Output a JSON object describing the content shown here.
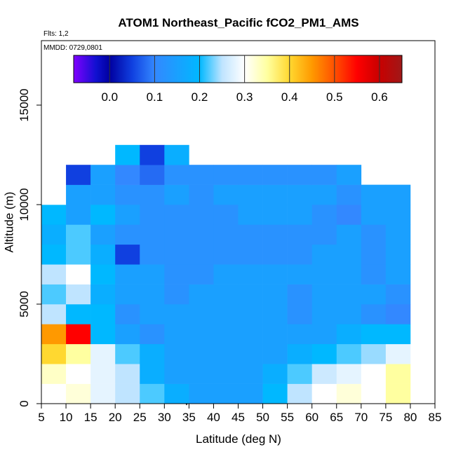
{
  "chart_data": {
    "type": "heatmap",
    "title": "ATOM1 Northeast_Pacific fCO2_PM1_AMS",
    "annotations": [
      "Flts: 1,2",
      "MMDD: 0729,0801"
    ],
    "xlabel": "Latitude (deg N)",
    "ylabel": "Altitude (m)",
    "xlim": [
      5,
      85
    ],
    "ylim": [
      0,
      18240
    ],
    "xticks": [
      5,
      10,
      15,
      20,
      25,
      30,
      35,
      40,
      45,
      50,
      55,
      60,
      65,
      70,
      75,
      80,
      85
    ],
    "yticks": [
      0,
      5000,
      10000,
      15000
    ],
    "x_edges": [
      5,
      10,
      15,
      20,
      25,
      30,
      35,
      40,
      45,
      50,
      55,
      60,
      65,
      70,
      75,
      80
    ],
    "y_edges": [
      0,
      1000,
      2000,
      3000,
      4000,
      5000,
      6000,
      7000,
      8000,
      9000,
      10000,
      11000,
      12000,
      13000
    ],
    "values": [
      [
        0.3,
        0.32,
        0.28,
        0.25,
        0.22,
        0.18,
        0.15,
        0.15,
        0.15,
        0.2,
        0.25,
        0.3,
        0.32,
        0.3,
        0.35
      ],
      [
        0.33,
        0.3,
        0.28,
        0.25,
        0.18,
        0.15,
        0.15,
        0.15,
        0.15,
        0.18,
        0.22,
        0.26,
        0.28,
        0.3,
        0.35
      ],
      [
        0.4,
        0.35,
        0.28,
        0.22,
        0.18,
        0.15,
        0.15,
        0.15,
        0.15,
        0.15,
        0.18,
        0.2,
        0.22,
        0.24,
        0.28
      ],
      [
        0.45,
        0.55,
        0.2,
        0.15,
        0.12,
        0.15,
        0.15,
        0.15,
        0.15,
        0.15,
        0.15,
        0.15,
        0.18,
        0.2,
        0.2
      ],
      [
        0.25,
        0.2,
        0.2,
        0.12,
        0.15,
        0.15,
        0.15,
        0.15,
        0.15,
        0.15,
        0.12,
        0.15,
        0.15,
        0.12,
        0.1
      ],
      [
        0.22,
        0.25,
        0.18,
        0.15,
        0.15,
        0.12,
        0.15,
        0.15,
        0.15,
        0.15,
        0.12,
        0.15,
        0.15,
        0.15,
        0.12
      ],
      [
        0.25,
        0.3,
        0.2,
        0.15,
        0.15,
        0.12,
        0.12,
        0.15,
        0.15,
        0.15,
        0.15,
        0.15,
        0.15,
        0.12,
        0.15
      ],
      [
        0.2,
        0.22,
        0.18,
        0.05,
        0.12,
        0.12,
        0.12,
        0.12,
        0.12,
        0.12,
        0.12,
        0.15,
        0.15,
        0.12,
        0.15
      ],
      [
        0.18,
        0.22,
        0.15,
        0.12,
        0.12,
        0.12,
        0.12,
        0.12,
        0.12,
        0.12,
        0.12,
        0.12,
        0.15,
        0.12,
        0.15
      ],
      [
        0.2,
        0.15,
        0.2,
        0.15,
        0.12,
        0.12,
        0.12,
        0.12,
        0.15,
        0.15,
        0.15,
        0.12,
        0.1,
        0.15,
        0.15
      ],
      [
        0.3,
        0.15,
        0.15,
        0.12,
        0.12,
        0.15,
        0.12,
        0.15,
        0.15,
        0.15,
        0.15,
        0.15,
        0.12,
        0.15,
        0.15
      ],
      [
        null,
        0.05,
        0.15,
        0.1,
        0.08,
        0.12,
        0.12,
        0.12,
        0.12,
        0.12,
        0.12,
        0.12,
        0.15,
        null,
        null
      ],
      [
        null,
        null,
        null,
        0.2,
        0.05,
        0.18,
        null,
        null,
        null,
        null,
        null,
        null,
        null,
        null,
        null
      ]
    ],
    "colorbar": {
      "lim": [
        -0.08,
        0.65
      ],
      "ticks": [
        {
          "value": 0,
          "label": "0.0"
        },
        0.1,
        0.2,
        0.3,
        0.4,
        0.5,
        0.6
      ],
      "stops": [
        {
          "value": -0.08,
          "color": "#8000ff"
        },
        {
          "value": -0.03,
          "color": "#1010d0"
        },
        {
          "value": 0.0,
          "color": "#0000a0"
        },
        {
          "value": 0.05,
          "color": "#1040e0"
        },
        {
          "value": 0.1,
          "color": "#3388ff"
        },
        {
          "value": 0.2,
          "color": "#00b8ff"
        },
        {
          "value": 0.25,
          "color": "#bfe4ff"
        },
        {
          "value": 0.3,
          "color": "#ffffff"
        },
        {
          "value": 0.35,
          "color": "#ffffa0"
        },
        {
          "value": 0.4,
          "color": "#ffd830"
        },
        {
          "value": 0.45,
          "color": "#ff9900"
        },
        {
          "value": 0.5,
          "color": "#ff5000"
        },
        {
          "value": 0.55,
          "color": "#ff0000"
        },
        {
          "value": 0.6,
          "color": "#c80000"
        },
        {
          "value": 0.65,
          "color": "#a01818"
        }
      ]
    }
  }
}
